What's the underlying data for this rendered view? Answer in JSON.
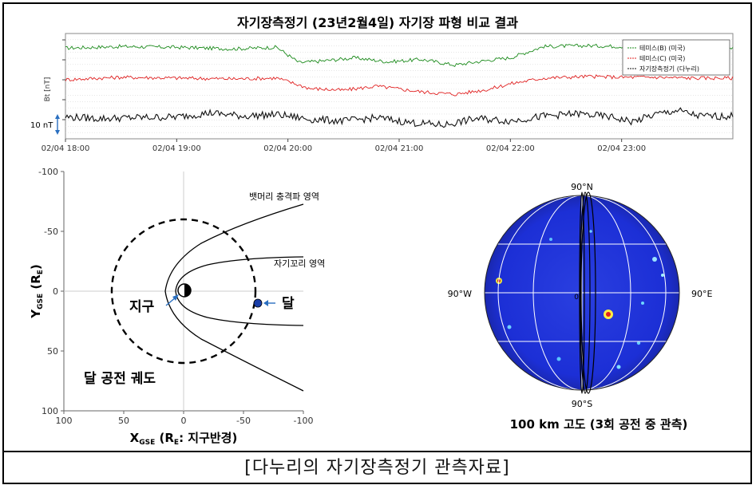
{
  "caption": "[다누리의 자기장측정기 관측자료]",
  "chart_data": [
    {
      "type": "line",
      "title": "자기장측정기 (23년2월4일) 자기장 파형 비교 결과",
      "ylabel": "Bt [nT]",
      "scale_label": "10 nT",
      "xticks": [
        "02/04 18:00",
        "02/04 19:00",
        "02/04 20:00",
        "02/04 21:00",
        "02/04 22:00",
        "02/04 23:00"
      ],
      "x_range_hours": [
        18,
        24
      ],
      "legend_position": "top-right",
      "series": [
        {
          "name": "테미스(B) (미국)",
          "color": "#1a8a1a",
          "x": [
            18.0,
            18.5,
            19.0,
            19.5,
            19.9,
            20.1,
            20.3,
            20.6,
            20.9,
            21.2,
            21.5,
            21.8,
            22.0,
            22.3,
            22.7,
            23.0,
            23.3,
            23.6,
            24.0
          ],
          "values": [
            4.2,
            4.4,
            4.3,
            4.1,
            4.3,
            2.4,
            2.6,
            3.0,
            2.5,
            2.8,
            2.1,
            2.7,
            3.0,
            4.4,
            4.5,
            4.4,
            4.5,
            4.3,
            4.3
          ]
        },
        {
          "name": "테미스(C) (미국)",
          "color": "#e02020",
          "x": [
            18.0,
            18.5,
            19.0,
            19.5,
            19.9,
            20.2,
            20.5,
            20.8,
            21.2,
            21.5,
            21.8,
            22.0,
            22.3,
            22.7,
            23.0,
            23.3,
            23.6,
            24.0
          ],
          "values": [
            0.3,
            0.6,
            0.5,
            0.4,
            0.5,
            -0.8,
            -1.0,
            -0.5,
            -1.2,
            -1.5,
            -0.9,
            -0.2,
            0.5,
            0.7,
            0.6,
            0.6,
            0.5,
            0.5
          ],
          "name_ref": 1
        },
        {
          "name": "자기장측정기 (다누리)",
          "color": "#111111",
          "x": [
            18.0,
            18.3,
            18.6,
            19.0,
            19.3,
            19.6,
            19.9,
            20.2,
            20.5,
            20.8,
            21.1,
            21.4,
            21.7,
            22.0,
            22.3,
            22.6,
            22.9,
            23.1,
            23.3,
            23.5,
            23.7,
            24.0
          ],
          "values": [
            -4.3,
            -4.5,
            -4.4,
            -4.3,
            -3.8,
            -4.2,
            -4.0,
            -4.6,
            -4.8,
            -4.4,
            -5.0,
            -5.3,
            -4.5,
            -4.8,
            -4.2,
            -3.9,
            -4.3,
            -4.9,
            -4.0,
            -3.5,
            -4.2,
            -4.2
          ]
        }
      ]
    },
    {
      "type": "diagram",
      "xlabel": "X",
      "xlabel_sub": "GSE",
      "xlabel_rest": " (R",
      "xlabel_sub2": "E",
      "xlabel_tail": ": 지구반경)",
      "ylabel": "Y",
      "ylabel_sub": "GSE",
      "ylabel_rest": " (R",
      "ylabel_sub2": "E",
      "ylabel_tail": ")",
      "xlim": [
        100,
        -100
      ],
      "ylim": [
        -100,
        100
      ],
      "xticks": [
        "100",
        "50",
        "0",
        "-50",
        "-100"
      ],
      "yticks": [
        "-100",
        "-50",
        "0",
        "50",
        "100"
      ],
      "labels": {
        "bowshock": "뱃머리 충격파 영역",
        "magnetotail": "자기꼬리 영역",
        "earth": "지구",
        "moon": "달",
        "orbit": "달 공전 궤도"
      },
      "moon_position": [
        -62,
        10
      ],
      "orbit_radius": 60
    },
    {
      "type": "map",
      "title": "100 km 고도 (3회 공전 중 관측)",
      "labels": {
        "north": "90°N",
        "south": "90°S",
        "west": "90°W",
        "east": "90°E",
        "center": "0"
      },
      "colors": {
        "background": "#1c2fd6",
        "grid": "#ffffff"
      }
    }
  ]
}
